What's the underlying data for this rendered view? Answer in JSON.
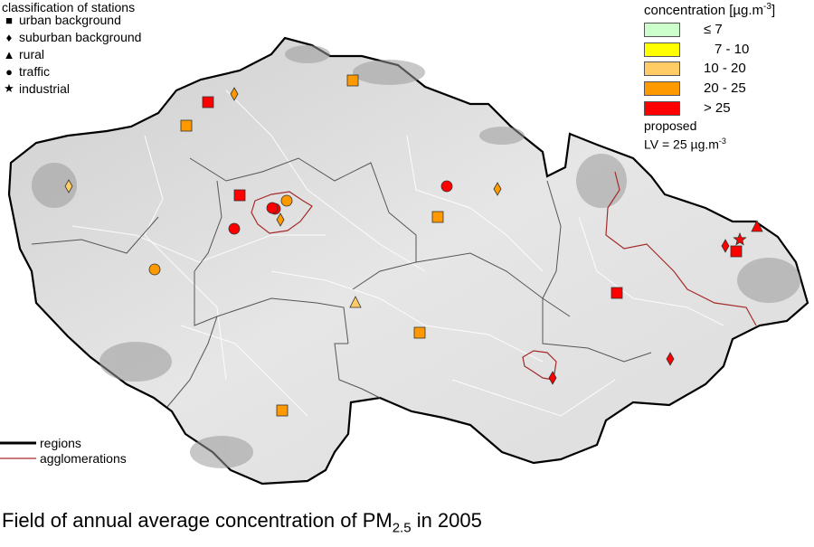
{
  "legend_classification": {
    "title": "classification of stations",
    "items": [
      {
        "symbol": "square",
        "label": "urban background"
      },
      {
        "symbol": "diamond",
        "label": "suburban background"
      },
      {
        "symbol": "triangle",
        "label": "rural"
      },
      {
        "symbol": "circle",
        "label": "traffic"
      },
      {
        "symbol": "star",
        "label": "industrial"
      }
    ]
  },
  "legend_concentration": {
    "title": "concentration [µg.m",
    "title_exp": "-3",
    "title_close": "]",
    "classes": [
      {
        "label": "≤ 7",
        "color": "#ccffcc"
      },
      {
        "label": "7 - 10",
        "color": "#ffff00"
      },
      {
        "label": "10 - 20",
        "color": "#ffcc66"
      },
      {
        "label": "20 - 25",
        "color": "#ff9900"
      },
      {
        "label": "> 25",
        "color": "#ff0000"
      }
    ],
    "proposed_line1": "proposed",
    "proposed_line2": "LV = 25 µg.m",
    "proposed_exp": "-3"
  },
  "legend_lines": {
    "regions": "regions",
    "agglomerations": "agglomerations"
  },
  "caption": {
    "text": "Field of annual average concentration of PM",
    "sub": "2.5",
    "tail": " in 2005"
  },
  "colors": {
    "regions_line": "#000000",
    "agglomeration_line": "#a52a2a",
    "terrain_low": "#ebebeb",
    "terrain_high": "#8c8c8c"
  },
  "stations": [
    {
      "type": "square",
      "class": "> 25"
    },
    {
      "type": "diamond",
      "class": "20 - 25"
    },
    {
      "type": "square",
      "class": "20 - 25"
    },
    {
      "type": "square",
      "class": "20 - 25"
    },
    {
      "type": "diamond",
      "class": "10 - 20"
    },
    {
      "type": "square",
      "class": "> 25"
    },
    {
      "type": "circle",
      "class": "> 25"
    },
    {
      "type": "circle",
      "class": "20 - 25"
    },
    {
      "type": "diamond",
      "class": "20 - 25"
    },
    {
      "type": "circle",
      "class": "> 25"
    },
    {
      "type": "circle",
      "class": "> 25"
    },
    {
      "type": "circle",
      "class": "20 - 25"
    },
    {
      "type": "circle",
      "class": "> 25"
    },
    {
      "type": "diamond",
      "class": "20 - 25"
    },
    {
      "type": "square",
      "class": "20 - 25"
    },
    {
      "type": "triangle",
      "class": "10 - 20"
    },
    {
      "type": "square",
      "class": "20 - 25"
    },
    {
      "type": "square",
      "class": "20 - 25"
    },
    {
      "type": "square",
      "class": "> 25"
    },
    {
      "type": "triangle",
      "class": "> 25"
    },
    {
      "type": "diamond",
      "class": "> 25"
    },
    {
      "type": "star",
      "class": "> 25"
    },
    {
      "type": "square",
      "class": "> 25"
    },
    {
      "type": "diamond",
      "class": "> 25"
    },
    {
      "type": "diamond",
      "class": "> 25"
    }
  ]
}
